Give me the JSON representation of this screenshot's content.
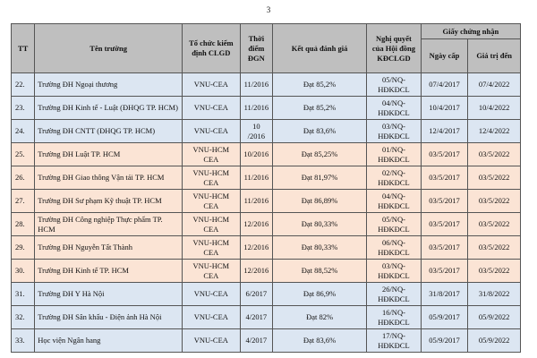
{
  "page_number": "3",
  "headers": {
    "tt": "TT",
    "name": "Tên trường",
    "org": "Tổ chức kiểm định CLGD",
    "time": "Thời điểm ĐGN",
    "result": "Kết quả đánh giá",
    "decision": "Nghị quyết của Hội đồng KĐCLGD",
    "certificate": "Giấy chứng nhận",
    "issue_date": "Ngày cấp",
    "valid_until": "Giá trị đến"
  },
  "rows": [
    {
      "tt": "22.",
      "name": "Trường ĐH Ngoại thương",
      "org": "VNU-CEA",
      "time": "11/2016",
      "result": "Đạt 85,2%",
      "decision": "05/NQ-HĐKĐCL",
      "issue": "07/4/2017",
      "valid": "07/4/2022",
      "tone": "blue"
    },
    {
      "tt": "23.",
      "name": "Trường ĐH Kinh tế - Luật (ĐHQG TP. HCM)",
      "org": "VNU-CEA",
      "time": "11/2016",
      "result": "Đạt 85,2%",
      "decision": "04/NQ-HĐKĐCL",
      "issue": "10/4/2017",
      "valid": "10/4/2022",
      "tone": "blue"
    },
    {
      "tt": "24.",
      "name": "Trường ĐH CNTT (ĐHQG TP. HCM)",
      "org": "VNU-CEA",
      "time": "10 /2016",
      "result": "Đạt 83,6%",
      "decision": "03/NQ-HĐKĐCL",
      "issue": "12/4/2017",
      "valid": "12/4/2022",
      "tone": "blue"
    },
    {
      "tt": "25.",
      "name": "Trường ĐH Luật TP. HCM",
      "org": "VNU-HCM CEA",
      "time": "10/2016",
      "result": "Đạt 85,25%",
      "decision": "01/NQ-HĐKĐCL",
      "issue": "03/5/2017",
      "valid": "03/5/2022",
      "tone": "peach"
    },
    {
      "tt": "26.",
      "name": "Trường ĐH Giao thông Vận tải TP. HCM",
      "org": "VNU-HCM CEA",
      "time": "11/2016",
      "result": "Đạt 81,97%",
      "decision": "02/NQ-HĐKĐCL",
      "issue": "03/5/2017",
      "valid": "03/5/2022",
      "tone": "peach"
    },
    {
      "tt": "27.",
      "name": "Trường ĐH Sư phạm Kỹ thuật TP. HCM",
      "org": "VNU-HCM CEA",
      "time": "11/2016",
      "result": "Đạt 86,89%",
      "decision": "04/NQ-HĐKĐCL",
      "issue": "03/5/2017",
      "valid": "03/5/2022",
      "tone": "peach"
    },
    {
      "tt": "28.",
      "name": "Trường ĐH Công nghiệp Thực phẩm TP. HCM",
      "org": "VNU-HCM CEA",
      "time": "12/2016",
      "result": "Đạt 80,33%",
      "decision": "05/NQ-HĐKĐCL",
      "issue": "03/5/2017",
      "valid": "03/5/2022",
      "tone": "peach"
    },
    {
      "tt": "29.",
      "name": "Trường ĐH Nguyễn Tất Thành",
      "org": "VNU-HCM CEA",
      "time": "12/2016",
      "result": "Đạt 80,33%",
      "decision": "06/NQ-HĐKĐCL",
      "issue": "03/5/2017",
      "valid": "03/5/2022",
      "tone": "peach"
    },
    {
      "tt": "30.",
      "name": "Trường ĐH Kinh tế TP. HCM",
      "org": "VNU-HCM CEA",
      "time": "12/2016",
      "result": "Đạt 88,52%",
      "decision": "03/NQ-HĐKĐCL",
      "issue": "03/5/2017",
      "valid": "03/5/2022",
      "tone": "peach"
    },
    {
      "tt": "31.",
      "name": "Trường ĐH Y Hà Nội",
      "org": "VNU-CEA",
      "time": "6/2017",
      "result": "Đạt 86,9%",
      "decision": "26/NQ-HĐKĐCL",
      "issue": "31/8/2017",
      "valid": "31/8/2022",
      "tone": "blue"
    },
    {
      "tt": "32.",
      "name": "Trường ĐH Sân khấu - Điện ảnh Hà Nội",
      "org": "VNU-CEA",
      "time": "4/2017",
      "result": "Đạt 82%",
      "decision": "16/NQ-HĐKĐCL",
      "issue": "05/9/2017",
      "valid": "05/9/2022",
      "tone": "blue"
    },
    {
      "tt": "33.",
      "name": "Học viện Ngân hang",
      "org": "VNU-CEA",
      "time": "4/2017",
      "result": "Đạt 83,6%",
      "decision": "17/NQ-HĐKĐCL",
      "issue": "05/9/2017",
      "valid": "05/9/2022",
      "tone": "blue"
    }
  ]
}
